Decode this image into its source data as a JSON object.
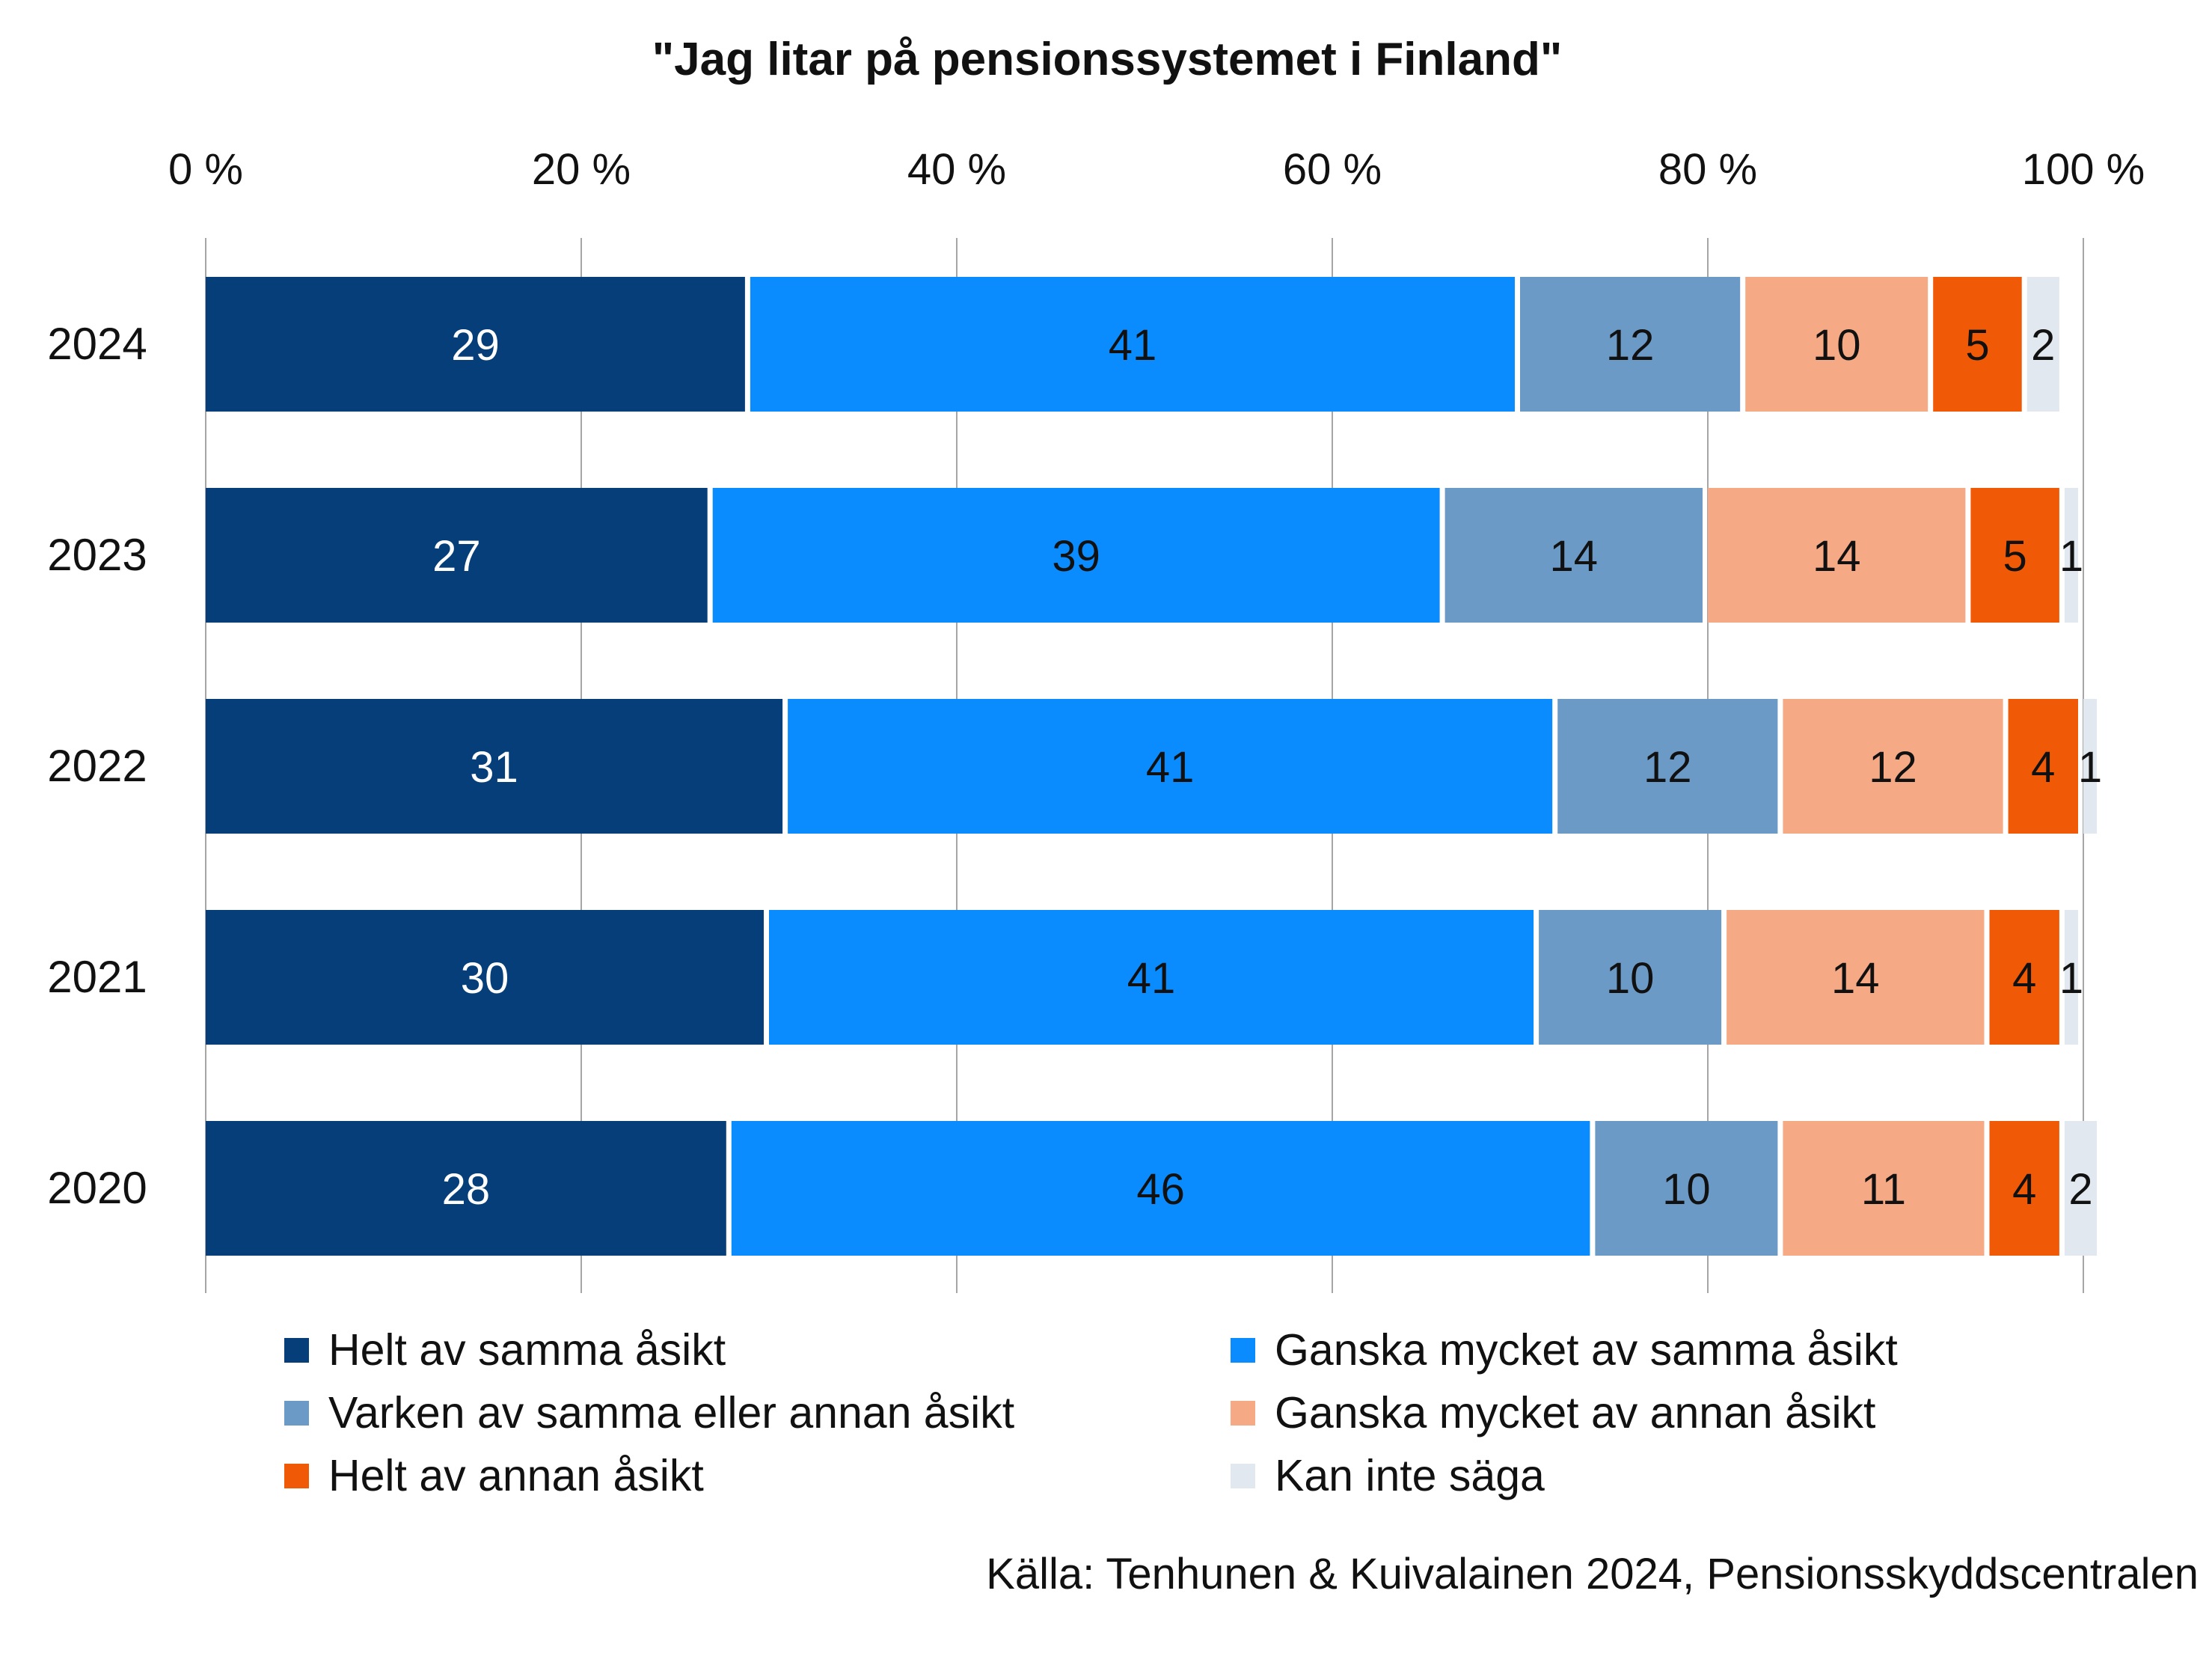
{
  "chart_data": {
    "type": "bar",
    "orientation": "horizontal",
    "stacked": true,
    "title": "\"Jag litar på pensionssystemet i Finland\"",
    "categories": [
      "2024",
      "2023",
      "2022",
      "2021",
      "2020"
    ],
    "series": [
      {
        "name": "Helt av samma åsikt",
        "color": "#053e78",
        "label_color": "#ffffff",
        "values": [
          29,
          27,
          31,
          30,
          28
        ]
      },
      {
        "name": "Ganska mycket av samma åsikt",
        "color": "#0a8cff",
        "label_color": "#111111",
        "values": [
          41,
          39,
          41,
          41,
          46
        ]
      },
      {
        "name": "Varken av samma eller annan åsikt",
        "color": "#6c9ac6",
        "label_color": "#111111",
        "values": [
          12,
          14,
          12,
          10,
          10
        ]
      },
      {
        "name": "Ganska mycket av annan åsikt",
        "color": "#f5a985",
        "label_color": "#111111",
        "values": [
          10,
          14,
          12,
          14,
          11
        ]
      },
      {
        "name": "Helt av annan åsikt",
        "color": "#f05a07",
        "label_color": "#111111",
        "values": [
          5,
          5,
          4,
          4,
          4
        ]
      },
      {
        "name": "Kan inte säga",
        "color": "#e2e8f0",
        "label_color": "#111111",
        "values": [
          2,
          1,
          1,
          1,
          2
        ]
      }
    ],
    "x_ticks": [
      "0 %",
      "20 %",
      "40 %",
      "60 %",
      "80 %",
      "100 %"
    ],
    "xlim": [
      0,
      100
    ],
    "x_axis_position": "top",
    "grid": true,
    "legend_position": "bottom"
  },
  "source": "Källa: Tenhunen & Kuivalainen 2024, Pensionsskyddscentralen"
}
